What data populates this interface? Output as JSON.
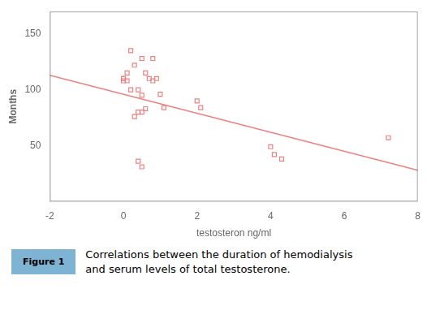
{
  "chart_data": {
    "type": "scatter",
    "xlabel": "testosteron ng/ml",
    "ylabel": "Months",
    "series": [
      {
        "type": "scatter",
        "marker": "square",
        "color": "#f08080",
        "x": [
          0.2,
          0.5,
          0.8,
          0.3,
          0.6,
          0.1,
          0.0,
          0.0,
          0.0,
          0.1,
          0.2,
          0.4,
          0.5,
          0.7,
          0.8,
          0.9,
          1.0,
          1.1,
          0.6,
          0.5,
          0.4,
          0.3,
          2.0,
          2.1,
          4.0,
          4.1,
          4.3,
          7.2,
          0.4,
          0.5
        ],
        "values": [
          135,
          128,
          128,
          122,
          115,
          115,
          110,
          110,
          108,
          108,
          100,
          100,
          95,
          110,
          108,
          110,
          96,
          84,
          83,
          80,
          80,
          76,
          90,
          84,
          49,
          42,
          38,
          57,
          36,
          31
        ]
      },
      {
        "type": "line",
        "line_style": "solid",
        "color": "#f08080",
        "x": [
          -2,
          8
        ],
        "values": [
          113,
          28
        ]
      }
    ],
    "xlim": [
      -2,
      8
    ],
    "ylim": [
      0,
      170
    ],
    "xticks": [
      -2,
      0,
      2,
      4,
      6,
      8
    ],
    "yticks": [
      50,
      100,
      150
    ],
    "grid": false,
    "annotations": [
      {
        "text": "Figure 1",
        "color": "#7fb3d3"
      },
      {
        "text": "Correlations between the duration of hemodialysis\nand serum levels of total testosterone."
      }
    ]
  }
}
